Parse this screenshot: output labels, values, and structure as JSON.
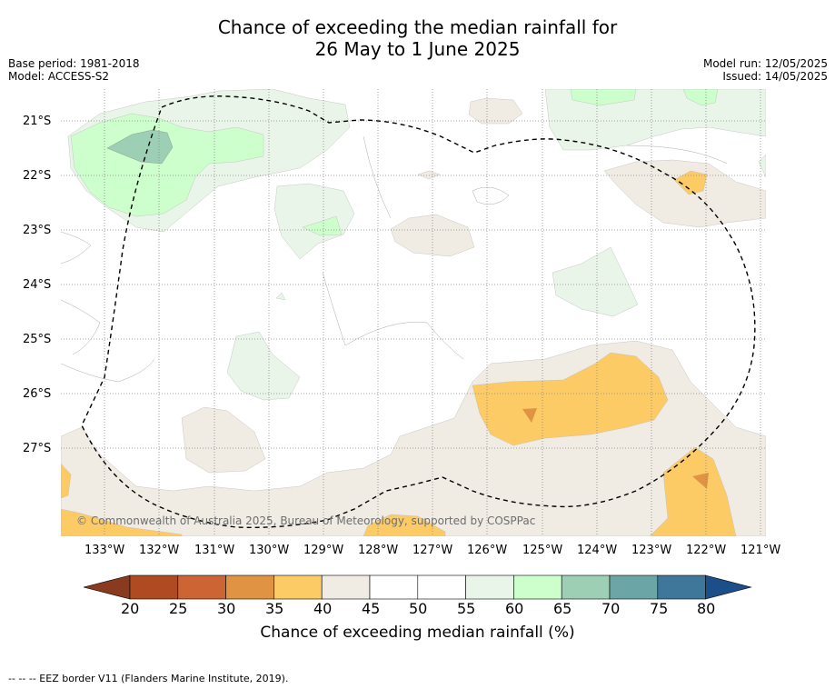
{
  "title": {
    "line1": "Chance of exceeding the median rainfall for",
    "line2": "26 May to 1 June 2025"
  },
  "meta": {
    "base_period": "Base period: 1981-2018",
    "model": "Model: ACCESS-S2",
    "model_run": "Model run: 12/05/2025",
    "issued": "Issued: 14/05/2025"
  },
  "map": {
    "lat_labels": [
      "21°S",
      "22°S",
      "23°S",
      "24°S",
      "25°S",
      "26°S",
      "27°S"
    ],
    "lon_labels": [
      "133°W",
      "132°W",
      "131°W",
      "130°W",
      "129°W",
      "128°W",
      "127°W",
      "126°W",
      "125°W",
      "124°W",
      "123°W",
      "122°W",
      "121°W"
    ],
    "copyright": "© Commonwealth of Australia 2025, Bureau of Meteorology, supported by COSPPac",
    "boundary_style": "dashed black"
  },
  "colorbar": {
    "title": "Chance of exceeding median rainfall (%)",
    "ticks": [
      "20",
      "25",
      "30",
      "35",
      "40",
      "45",
      "50",
      "55",
      "60",
      "65",
      "70",
      "75",
      "80"
    ],
    "colors": [
      "#8a3a1e",
      "#b04a22",
      "#cc6533",
      "#e09443",
      "#fdcb66",
      "#f0ebe3",
      "#ffffff",
      "#ffffff",
      "#e9f5e8",
      "#ccffcc",
      "#9ccfb4",
      "#6ca5a5",
      "#3e779a",
      "#1c4e8a"
    ]
  },
  "footer": "--  --  -- EEZ border V11 (Flanders Marine Institute, 2019)."
}
